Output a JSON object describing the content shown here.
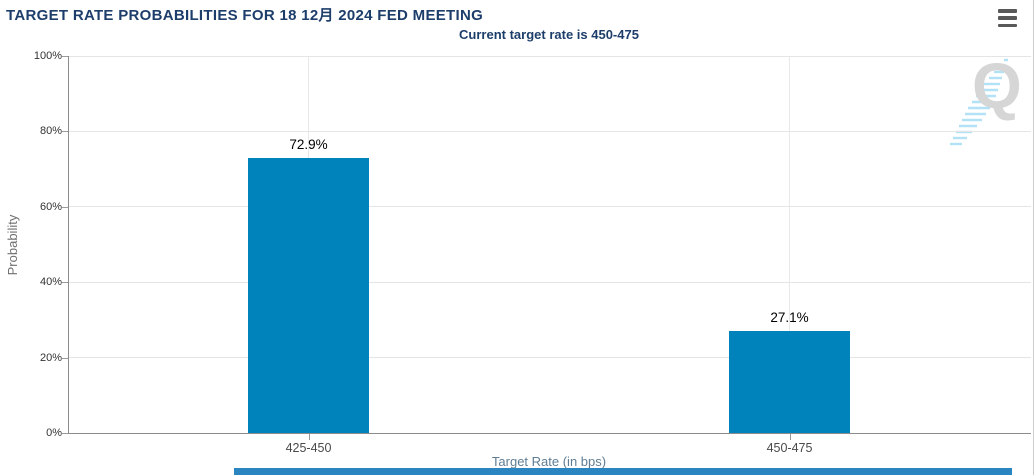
{
  "header": {
    "title": "TARGET RATE PROBABILITIES FOR 18 12月 2024 FED MEETING",
    "subtitle": "Current target rate is 450-475",
    "menu_icon": "hamburger-icon"
  },
  "chart_data": {
    "type": "bar",
    "title": "TARGET RATE PROBABILITIES FOR 18 12月 2024 FED MEETING",
    "subtitle": "Current target rate is 450-475",
    "categories": [
      "425-450",
      "450-475"
    ],
    "values": [
      72.9,
      27.1
    ],
    "value_labels": [
      "72.9%",
      "27.1%"
    ],
    "xlabel": "Target Rate (in bps)",
    "ylabel": "Probability",
    "ylim": [
      0,
      100
    ],
    "yticks": [
      0,
      20,
      40,
      60,
      80,
      100
    ],
    "ytick_labels": [
      "0%",
      "20%",
      "40%",
      "60%",
      "80%",
      "100%"
    ],
    "grid": true,
    "legend": "none",
    "bar_color": "#0082ba"
  },
  "watermark": {
    "letter": "Q",
    "streak_icon": "diagonal-dash-streak-icon"
  },
  "scrollbar": {
    "orientation": "horizontal",
    "color": "#2a85c0"
  },
  "colors": {
    "title": "#1d3e6b",
    "bar": "#0082ba",
    "axis_line": "#8c8c8c",
    "gridline": "#e5e5e5",
    "x_axis_title": "#5e7d95"
  }
}
